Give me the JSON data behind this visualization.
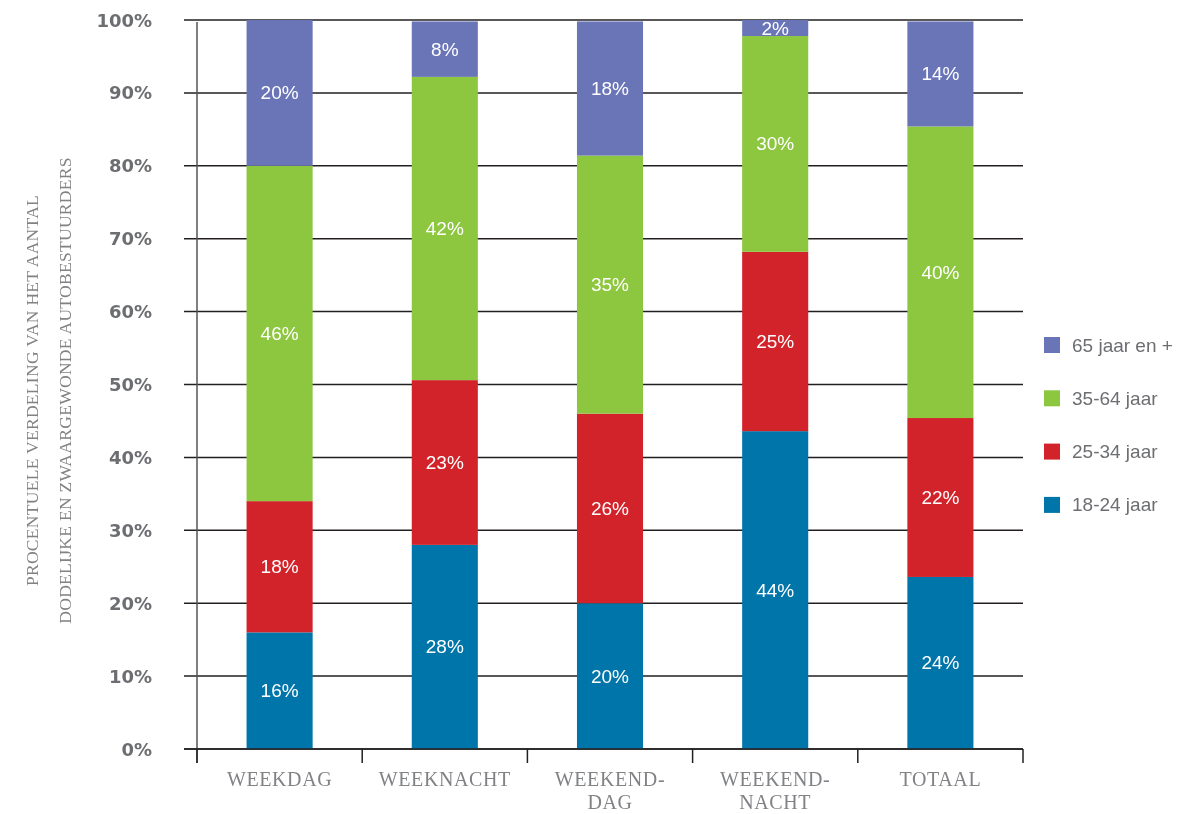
{
  "chart_data": {
    "type": "bar",
    "stacked": true,
    "categories": [
      "WEEKDAG",
      "WEEKNACHT",
      "WEEKEND-DAG",
      "WEEKEND-NACHT",
      "TOTAAL"
    ],
    "ylabel": "PROCENTUELE VERDELING VAN HET AANTAL\nDODELIJKE EN ZWAARGEWONDE AUTOBESTUURDERS",
    "ylim": [
      0,
      100
    ],
    "yticks": [
      {
        "value": 0,
        "label": "0%"
      },
      {
        "value": 10,
        "label": "10%"
      },
      {
        "value": 20,
        "label": "20%"
      },
      {
        "value": 30,
        "label": "30%"
      },
      {
        "value": 40,
        "label": "40%"
      },
      {
        "value": 50,
        "label": "50%"
      },
      {
        "value": 60,
        "label": "60%"
      },
      {
        "value": 70,
        "label": "70%"
      },
      {
        "value": 80,
        "label": "80%"
      },
      {
        "value": 90,
        "label": "90%"
      },
      {
        "value": 100,
        "label": "100%"
      }
    ],
    "grid": "y",
    "legend": "right",
    "series": [
      {
        "name": "18-24 jaar",
        "color": "#0075a9",
        "values": [
          16,
          28,
          20,
          43.6,
          23.6
        ],
        "value_labels": [
          "16%",
          "28%",
          "20%",
          "44%",
          "24%"
        ]
      },
      {
        "name": "25-34 jaar",
        "color": "#d2232a",
        "values": [
          18,
          22.6,
          26,
          24.6,
          21.8
        ],
        "value_labels": [
          "18%",
          "23%",
          "26%",
          "25%",
          "22%"
        ]
      },
      {
        "name": "35-64 jaar",
        "color": "#8dc63f",
        "values": [
          46,
          41.6,
          35.4,
          29.6,
          40
        ],
        "value_labels": [
          "46%",
          "42%",
          "35%",
          "30%",
          "40%"
        ]
      },
      {
        "name": "65 jaar en +",
        "color": "#6a75b8",
        "values": [
          20,
          7.6,
          18.4,
          2.2,
          14.4
        ],
        "value_labels": [
          "20%",
          "8%",
          "18%",
          "2%",
          "14%"
        ]
      }
    ]
  }
}
